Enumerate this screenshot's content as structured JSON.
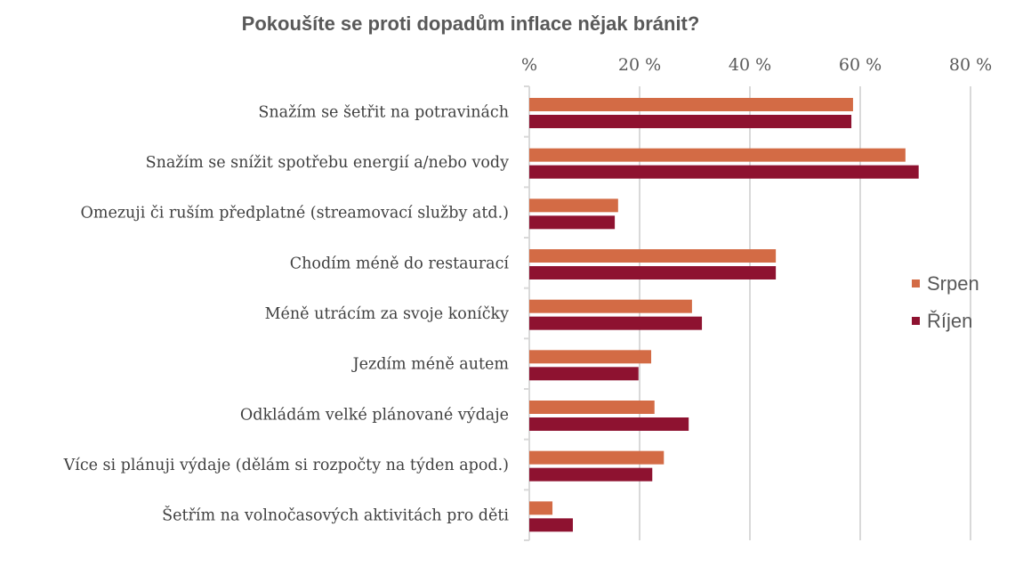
{
  "chart_data": {
    "type": "bar",
    "orientation": "horizontal",
    "title": "Pokoušíte se proti dopadům inflace nějak bránit?",
    "categories": [
      "Snažím se šetřit na potravinách",
      "Snažím se snížit spotřebu energií a/nebo vody",
      "Omezuji či ruším předplatné (streamovací služby atd.)",
      "Chodím méně do restaurací",
      "Méně utrácím za svoje koníčky",
      "Jezdím méně autem",
      "Odkládám velké plánované výdaje",
      "Více si plánuji výdaje (dělám si rozpočty na týden apod.)",
      "Šetřím na volnočasových aktivitách pro děti"
    ],
    "series": [
      {
        "name": "Srpen",
        "color": "#D36B45",
        "values": [
          58.7,
          68.2,
          16.1,
          44.7,
          29.5,
          22.1,
          22.7,
          24.4,
          4.2
        ]
      },
      {
        "name": "Říjen",
        "color": "#8E1230",
        "values": [
          58.4,
          70.6,
          15.5,
          44.7,
          31.3,
          19.8,
          28.9,
          22.3,
          7.9
        ]
      }
    ],
    "xlim": [
      0,
      80
    ],
    "xticks": [
      0,
      20,
      40,
      60,
      80
    ],
    "xtick_labels": [
      "%",
      "20 %",
      "40 %",
      "60 %",
      "80 %"
    ],
    "xaxis_position": "top",
    "grid": true,
    "legend_position": "right",
    "xlabel": "",
    "ylabel": ""
  }
}
